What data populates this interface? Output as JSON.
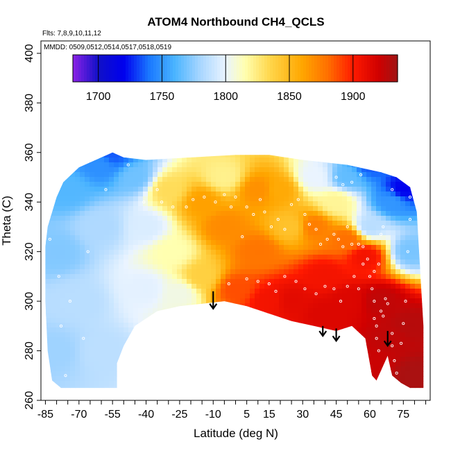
{
  "chart_data": {
    "type": "heatmap",
    "title": "ATOM4 Northbound CH4_QCLS",
    "annotations": {
      "flights": "Flts: 7,8,9,10,11,12",
      "dates": "MMDD: 0509,0512,0514,0517,0518,0519"
    },
    "xlabel": "Latitude (deg N)",
    "ylabel": "Theta (C)",
    "xlim": [
      -87,
      87
    ],
    "ylim": [
      260,
      405
    ],
    "xticks": [
      -85,
      -70,
      -55,
      -40,
      -25,
      -10,
      5,
      15,
      30,
      45,
      60,
      75
    ],
    "xminor_step": 5,
    "yticks": [
      260,
      280,
      300,
      320,
      340,
      360,
      380,
      400
    ],
    "colorbar": {
      "min": 1680,
      "max": 1935,
      "ticks": [
        1700,
        1750,
        1800,
        1850,
        1900
      ],
      "stops": [
        {
          "v": 1680,
          "c": "#8b22e6"
        },
        {
          "v": 1700,
          "c": "#1010c8"
        },
        {
          "v": 1720,
          "c": "#0000ee"
        },
        {
          "v": 1740,
          "c": "#1a78ff"
        },
        {
          "v": 1760,
          "c": "#4ab4ff"
        },
        {
          "v": 1780,
          "c": "#a8d6ff"
        },
        {
          "v": 1800,
          "c": "#eaf4ff"
        },
        {
          "v": 1815,
          "c": "#ffffb0"
        },
        {
          "v": 1835,
          "c": "#ffd64a"
        },
        {
          "v": 1860,
          "c": "#ffa600"
        },
        {
          "v": 1880,
          "c": "#ff7000"
        },
        {
          "v": 1900,
          "c": "#ff1a00"
        },
        {
          "v": 1920,
          "c": "#d00000"
        },
        {
          "v": 1935,
          "c": "#a01515"
        }
      ]
    },
    "field_outline": [
      [
        -85,
        322
      ],
      [
        -84,
        330
      ],
      [
        -80,
        342
      ],
      [
        -77,
        348
      ],
      [
        -70,
        354
      ],
      [
        -60,
        358
      ],
      [
        -55,
        360
      ],
      [
        -50,
        358
      ],
      [
        -40,
        357
      ],
      [
        -20,
        358
      ],
      [
        0,
        359
      ],
      [
        15,
        359
      ],
      [
        30,
        357
      ],
      [
        50,
        355
      ],
      [
        65,
        352
      ],
      [
        72,
        350
      ],
      [
        78,
        346
      ],
      [
        81,
        336
      ],
      [
        83,
        305
      ],
      [
        84,
        290
      ],
      [
        84,
        265
      ],
      [
        78,
        265
      ],
      [
        74,
        267
      ],
      [
        70,
        270
      ],
      [
        68,
        278
      ],
      [
        65,
        272
      ],
      [
        63,
        268
      ],
      [
        61,
        270
      ],
      [
        58,
        285
      ],
      [
        52,
        290
      ],
      [
        45,
        288
      ],
      [
        35,
        290
      ],
      [
        25,
        292
      ],
      [
        15,
        295
      ],
      [
        5,
        298
      ],
      [
        -5,
        300
      ],
      [
        -15,
        299
      ],
      [
        -25,
        298
      ],
      [
        -35,
        296
      ],
      [
        -45,
        290
      ],
      [
        -50,
        282
      ],
      [
        -53,
        275
      ],
      [
        -53,
        265
      ],
      [
        -78,
        265
      ],
      [
        -82,
        268
      ],
      [
        -84,
        280
      ],
      [
        -85,
        300
      ]
    ],
    "ch4_samples": [
      {
        "lat": -80,
        "theta": 280,
        "ch4": 1778
      },
      {
        "lat": -80,
        "theta": 320,
        "ch4": 1772
      },
      {
        "lat": -75,
        "theta": 345,
        "ch4": 1762
      },
      {
        "lat": -60,
        "theta": 355,
        "ch4": 1748
      },
      {
        "lat": -55,
        "theta": 359,
        "ch4": 1735
      },
      {
        "lat": -60,
        "theta": 330,
        "ch4": 1782
      },
      {
        "lat": -70,
        "theta": 300,
        "ch4": 1785
      },
      {
        "lat": -60,
        "theta": 280,
        "ch4": 1786
      },
      {
        "lat": -45,
        "theta": 350,
        "ch4": 1768
      },
      {
        "lat": -40,
        "theta": 330,
        "ch4": 1795
      },
      {
        "lat": -40,
        "theta": 305,
        "ch4": 1798
      },
      {
        "lat": -30,
        "theta": 345,
        "ch4": 1832
      },
      {
        "lat": -28,
        "theta": 320,
        "ch4": 1815
      },
      {
        "lat": -25,
        "theta": 303,
        "ch4": 1805
      },
      {
        "lat": -15,
        "theta": 340,
        "ch4": 1862
      },
      {
        "lat": -15,
        "theta": 310,
        "ch4": 1838
      },
      {
        "lat": -5,
        "theta": 350,
        "ch4": 1822
      },
      {
        "lat": -5,
        "theta": 330,
        "ch4": 1870
      },
      {
        "lat": 0,
        "theta": 305,
        "ch4": 1888
      },
      {
        "lat": 10,
        "theta": 345,
        "ch4": 1868
      },
      {
        "lat": 10,
        "theta": 320,
        "ch4": 1878
      },
      {
        "lat": 15,
        "theta": 300,
        "ch4": 1905
      },
      {
        "lat": 20,
        "theta": 345,
        "ch4": 1858
      },
      {
        "lat": 25,
        "theta": 330,
        "ch4": 1845
      },
      {
        "lat": 25,
        "theta": 300,
        "ch4": 1912
      },
      {
        "lat": 35,
        "theta": 350,
        "ch4": 1800
      },
      {
        "lat": 35,
        "theta": 330,
        "ch4": 1875
      },
      {
        "lat": 40,
        "theta": 310,
        "ch4": 1905
      },
      {
        "lat": 40,
        "theta": 295,
        "ch4": 1915
      },
      {
        "lat": 50,
        "theta": 350,
        "ch4": 1765
      },
      {
        "lat": 50,
        "theta": 325,
        "ch4": 1880
      },
      {
        "lat": 50,
        "theta": 300,
        "ch4": 1915
      },
      {
        "lat": 60,
        "theta": 355,
        "ch4": 1735
      },
      {
        "lat": 60,
        "theta": 330,
        "ch4": 1785
      },
      {
        "lat": 58,
        "theta": 318,
        "ch4": 1905
      },
      {
        "lat": 65,
        "theta": 300,
        "ch4": 1925
      },
      {
        "lat": 70,
        "theta": 340,
        "ch4": 1750
      },
      {
        "lat": 75,
        "theta": 345,
        "ch4": 1720
      },
      {
        "lat": 78,
        "theta": 320,
        "ch4": 1770
      },
      {
        "lat": 78,
        "theta": 290,
        "ch4": 1928
      },
      {
        "lat": 80,
        "theta": 270,
        "ch4": 1932
      },
      {
        "lat": 62,
        "theta": 275,
        "ch4": 1922
      },
      {
        "lat": 70,
        "theta": 285,
        "ch4": 1925
      },
      {
        "lat": 45,
        "theta": 340,
        "ch4": 1820
      }
    ],
    "observation_points": [
      [
        -83,
        325
      ],
      [
        -79,
        310
      ],
      [
        -78,
        290
      ],
      [
        -76,
        270
      ],
      [
        -74,
        300
      ],
      [
        -68,
        285
      ],
      [
        -66,
        320
      ],
      [
        -58,
        345
      ],
      [
        -48,
        355
      ],
      [
        -41,
        340
      ],
      [
        -35,
        345
      ],
      [
        -33,
        340
      ],
      [
        -28,
        338
      ],
      [
        -22,
        338
      ],
      [
        -19,
        341
      ],
      [
        -14,
        342
      ],
      [
        -9,
        340
      ],
      [
        -5,
        343
      ],
      [
        -2,
        338
      ],
      [
        0,
        342
      ],
      [
        3,
        326
      ],
      [
        5,
        338
      ],
      [
        8,
        335
      ],
      [
        11,
        341
      ],
      [
        13,
        336
      ],
      [
        16,
        330
      ],
      [
        19,
        333
      ],
      [
        22,
        329
      ],
      [
        25,
        339
      ],
      [
        28,
        341
      ],
      [
        31,
        335
      ],
      [
        33,
        331
      ],
      [
        36,
        329
      ],
      [
        38,
        323
      ],
      [
        41,
        325
      ],
      [
        44,
        327
      ],
      [
        46,
        325
      ],
      [
        48,
        322
      ],
      [
        50,
        330
      ],
      [
        52,
        323
      ],
      [
        55,
        323
      ],
      [
        57,
        322
      ],
      [
        57,
        315
      ],
      [
        59,
        317
      ],
      [
        60,
        310
      ],
      [
        61,
        305
      ],
      [
        62,
        300
      ],
      [
        62,
        293
      ],
      [
        63,
        290
      ],
      [
        63,
        285
      ],
      [
        64,
        280
      ],
      [
        65,
        296
      ],
      [
        66,
        294
      ],
      [
        67,
        301
      ],
      [
        68,
        299
      ],
      [
        70,
        287
      ],
      [
        70,
        282
      ],
      [
        71,
        276
      ],
      [
        72,
        271
      ],
      [
        73,
        267
      ],
      [
        74,
        283
      ],
      [
        75,
        291
      ],
      [
        76,
        300
      ],
      [
        77,
        320
      ],
      [
        78,
        333
      ],
      [
        78,
        342
      ],
      [
        79,
        348
      ],
      [
        70,
        345
      ],
      [
        66,
        330
      ],
      [
        65,
        327
      ],
      [
        64,
        315
      ],
      [
        62,
        312
      ],
      [
        55,
        305
      ],
      [
        53,
        310
      ],
      [
        50,
        306
      ],
      [
        47,
        300
      ],
      [
        44,
        305
      ],
      [
        40,
        306
      ],
      [
        36,
        303
      ],
      [
        31,
        305
      ],
      [
        27,
        308
      ],
      [
        22,
        310
      ],
      [
        18,
        304
      ],
      [
        15,
        307
      ],
      [
        10,
        308
      ],
      [
        5,
        309
      ],
      [
        -3,
        307
      ],
      [
        45,
        350
      ],
      [
        48,
        347
      ],
      [
        52,
        348
      ],
      [
        56,
        351
      ]
    ],
    "arrows": [
      {
        "lat": -10,
        "theta_top": 304,
        "theta_tip": 297
      },
      {
        "lat": 39,
        "theta_top": 290,
        "theta_tip": 286
      },
      {
        "lat": 45,
        "theta_top": 289,
        "theta_tip": 284
      },
      {
        "lat": 68,
        "theta_top": 288,
        "theta_tip": 282
      }
    ]
  }
}
